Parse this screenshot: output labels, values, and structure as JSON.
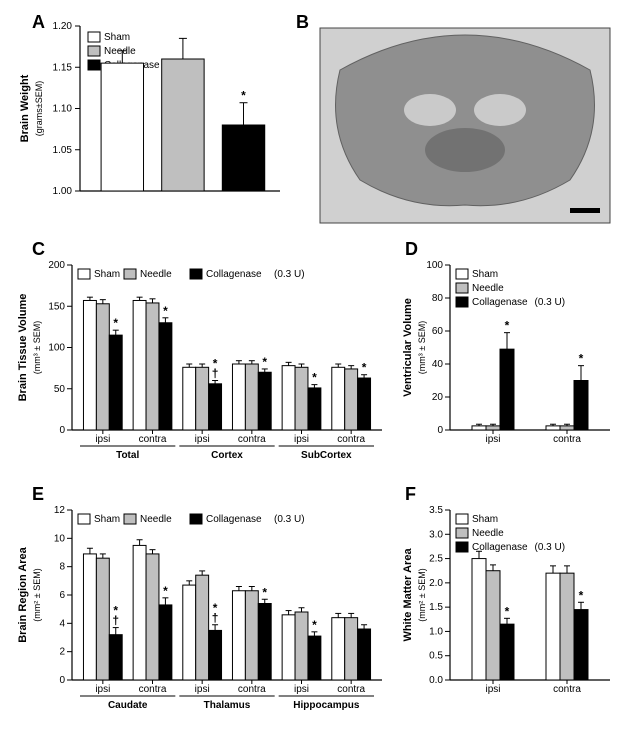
{
  "colors": {
    "sham": "#ffffff",
    "needle": "#bfbfbf",
    "collagenase": "#000000",
    "outline": "#000000",
    "photo_bg": "#d0d0d0",
    "photo_tissue": "#888888",
    "photo_dark": "#555555"
  },
  "legend_common": {
    "sham": "Sham",
    "needle": "Needle",
    "collagenase": "Collagenase",
    "collagenase_dose": "(0.3 U)"
  },
  "panelA": {
    "label": "A",
    "type": "bar",
    "ylabel_line1": "Brain Weight",
    "ylabel_line2": "(grams±SEM)",
    "categories": [
      "Sham",
      "Needle",
      "Collagenase"
    ],
    "values": [
      1.155,
      1.16,
      1.08
    ],
    "errors": [
      0.015,
      0.025,
      0.027
    ],
    "ylim": [
      1.0,
      1.2
    ],
    "ytick_step": 0.05,
    "bar_colors_ref": [
      "sham",
      "needle",
      "collagenase"
    ],
    "sig_marks": [
      {
        "index": 2,
        "symbol": "*"
      }
    ],
    "bar_width": 0.7,
    "legend_order": [
      "sham",
      "needle",
      "collagenase"
    ]
  },
  "panelB": {
    "label": "B",
    "type": "image",
    "description": "coronal-brain-section-photo"
  },
  "panelC": {
    "label": "C",
    "type": "grouped-bar",
    "ylabel_line1": "Brain Tissue Volume",
    "ylabel_line2": "(mm³ ± SEM)",
    "ylim": [
      0,
      200
    ],
    "ytick_step": 50,
    "groups": [
      "Total",
      "Cortex",
      "SubCortex"
    ],
    "subgroups": [
      "ipsi",
      "contra"
    ],
    "conditions": [
      "sham",
      "needle",
      "collagenase"
    ],
    "values": {
      "Total": {
        "ipsi": {
          "sham": 157,
          "needle": 153,
          "collagenase": 115
        },
        "contra": {
          "sham": 157,
          "needle": 154,
          "collagenase": 130
        }
      },
      "Cortex": {
        "ipsi": {
          "sham": 76,
          "needle": 76,
          "collagenase": 56
        },
        "contra": {
          "sham": 80,
          "needle": 80,
          "collagenase": 70
        }
      },
      "SubCortex": {
        "ipsi": {
          "sham": 78,
          "needle": 76,
          "collagenase": 51
        },
        "contra": {
          "sham": 76,
          "needle": 74,
          "collagenase": 63
        }
      }
    },
    "errors": {
      "Total": {
        "ipsi": {
          "sham": 4,
          "needle": 5,
          "collagenase": 6
        },
        "contra": {
          "sham": 4,
          "needle": 5,
          "collagenase": 6
        }
      },
      "Cortex": {
        "ipsi": {
          "sham": 4,
          "needle": 4,
          "collagenase": 4
        },
        "contra": {
          "sham": 4,
          "needle": 4,
          "collagenase": 4
        }
      },
      "SubCortex": {
        "ipsi": {
          "sham": 4,
          "needle": 4,
          "collagenase": 4
        },
        "contra": {
          "sham": 4,
          "needle": 4,
          "collagenase": 4
        }
      }
    },
    "sig": {
      "Total": {
        "ipsi": [
          "*"
        ],
        "contra": [
          "*"
        ]
      },
      "Cortex": {
        "ipsi": [
          "†",
          "*"
        ],
        "contra": [
          "*"
        ]
      },
      "SubCortex": {
        "ipsi": [
          "*"
        ],
        "contra": [
          "*"
        ]
      }
    }
  },
  "panelD": {
    "label": "D",
    "type": "grouped-bar",
    "ylabel_line1": "Ventricular Volume",
    "ylabel_line2": "(mm³ ± SEM)",
    "ylim": [
      0,
      100
    ],
    "ytick_step": 20,
    "subgroups": [
      "ipsi",
      "contra"
    ],
    "conditions": [
      "sham",
      "needle",
      "collagenase"
    ],
    "values": {
      "ipsi": {
        "sham": 2.5,
        "needle": 2.5,
        "collagenase": 49
      },
      "contra": {
        "sham": 2.5,
        "needle": 2.5,
        "collagenase": 30
      }
    },
    "errors": {
      "ipsi": {
        "sham": 1,
        "needle": 1,
        "collagenase": 10
      },
      "contra": {
        "sham": 1,
        "needle": 1,
        "collagenase": 9
      }
    },
    "sig": {
      "ipsi": [
        "*"
      ],
      "contra": [
        "*"
      ]
    }
  },
  "panelE": {
    "label": "E",
    "type": "grouped-bar",
    "ylabel_line1": "Brain Region Area",
    "ylabel_line2": "(mm² ± SEM)",
    "ylim": [
      0,
      12
    ],
    "ytick_step": 2,
    "groups": [
      "Caudate",
      "Thalamus",
      "Hippocampus"
    ],
    "subgroups": [
      "ipsi",
      "contra"
    ],
    "conditions": [
      "sham",
      "needle",
      "collagenase"
    ],
    "values": {
      "Caudate": {
        "ipsi": {
          "sham": 8.9,
          "needle": 8.6,
          "collagenase": 3.2
        },
        "contra": {
          "sham": 9.5,
          "needle": 8.9,
          "collagenase": 5.3
        }
      },
      "Thalamus": {
        "ipsi": {
          "sham": 6.7,
          "needle": 7.4,
          "collagenase": 3.5
        },
        "contra": {
          "sham": 6.3,
          "needle": 6.3,
          "collagenase": 5.4
        }
      },
      "Hippocampus": {
        "ipsi": {
          "sham": 4.6,
          "needle": 4.8,
          "collagenase": 3.1
        },
        "contra": {
          "sham": 4.4,
          "needle": 4.4,
          "collagenase": 3.6
        }
      }
    },
    "errors": {
      "Caudate": {
        "ipsi": {
          "sham": 0.4,
          "needle": 0.3,
          "collagenase": 0.5
        },
        "contra": {
          "sham": 0.4,
          "needle": 0.3,
          "collagenase": 0.5
        }
      },
      "Thalamus": {
        "ipsi": {
          "sham": 0.3,
          "needle": 0.3,
          "collagenase": 0.4
        },
        "contra": {
          "sham": 0.3,
          "needle": 0.3,
          "collagenase": 0.3
        }
      },
      "Hippocampus": {
        "ipsi": {
          "sham": 0.3,
          "needle": 0.3,
          "collagenase": 0.3
        },
        "contra": {
          "sham": 0.3,
          "needle": 0.3,
          "collagenase": 0.3
        }
      }
    },
    "sig": {
      "Caudate": {
        "ipsi": [
          "†",
          "*"
        ],
        "contra": [
          "*"
        ]
      },
      "Thalamus": {
        "ipsi": [
          "†",
          "*"
        ],
        "contra": [
          "*"
        ]
      },
      "Hippocampus": {
        "ipsi": [
          "*"
        ],
        "contra": []
      }
    }
  },
  "panelF": {
    "label": "F",
    "type": "grouped-bar",
    "ylabel_line1": "White Matter Area",
    "ylabel_line2": "(mm² ± SEM)",
    "ylim": [
      0,
      3.5
    ],
    "ytick_step": 0.5,
    "subgroups": [
      "ipsi",
      "contra"
    ],
    "conditions": [
      "sham",
      "needle",
      "collagenase"
    ],
    "values": {
      "ipsi": {
        "sham": 2.5,
        "needle": 2.25,
        "collagenase": 1.15
      },
      "contra": {
        "sham": 2.2,
        "needle": 2.2,
        "collagenase": 1.45
      }
    },
    "errors": {
      "ipsi": {
        "sham": 0.15,
        "needle": 0.12,
        "collagenase": 0.12
      },
      "contra": {
        "sham": 0.15,
        "needle": 0.15,
        "collagenase": 0.15
      }
    },
    "sig": {
      "ipsi": [
        "*"
      ],
      "contra": [
        "*"
      ]
    }
  }
}
